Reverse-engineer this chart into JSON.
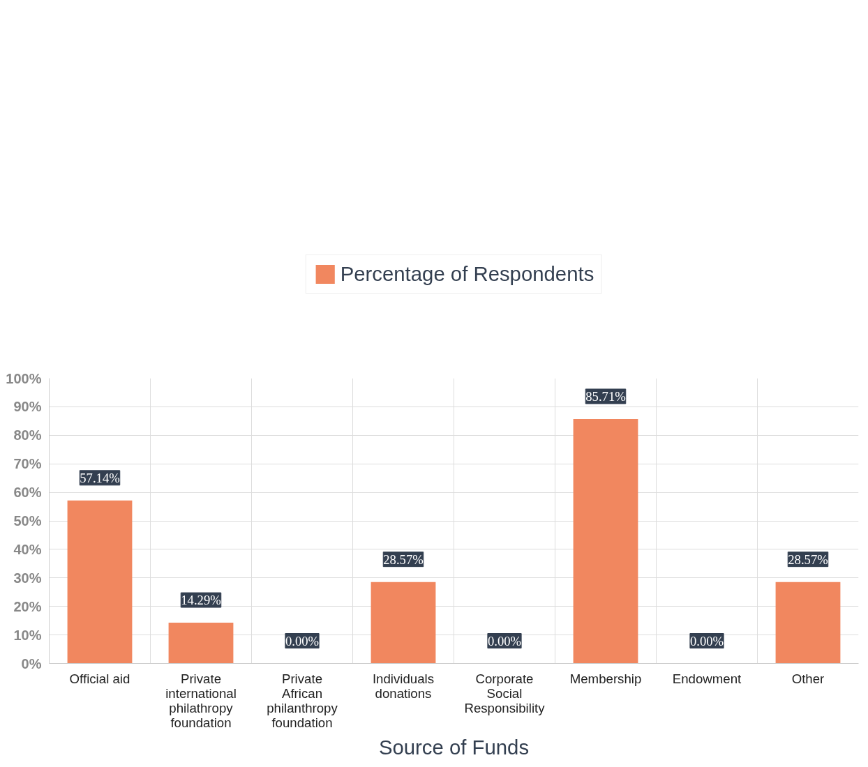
{
  "chart_data": {
    "type": "bar",
    "xlabel": "Source of Funds",
    "categories": [
      "Official aid",
      "Private international philathropy foundation",
      "Private African philanthropy foundation",
      "Individuals donations",
      "Corporate Social Responsibility",
      "Membership",
      "Endowment",
      "Other"
    ],
    "series": [
      {
        "name": "Percentage of Respondents",
        "color": "#f1875f",
        "values": [
          57.14,
          14.29,
          0,
          28.57,
          0,
          85.71,
          0,
          28.57
        ],
        "value_labels": [
          "57.14%",
          "14.29%",
          "0.00%",
          "28.57%",
          "0.00%",
          "85.71%",
          "0.00%",
          "28.57%"
        ]
      }
    ],
    "ylim": [
      0,
      100
    ],
    "yticks": [
      {
        "value": 0,
        "label": "0%"
      },
      {
        "value": 10,
        "label": "10%"
      },
      {
        "value": 20,
        "label": "20%"
      },
      {
        "value": 30,
        "label": "30%"
      },
      {
        "value": 40,
        "label": "40%"
      },
      {
        "value": 50,
        "label": "50%"
      },
      {
        "value": 60,
        "label": "60%"
      },
      {
        "value": 70,
        "label": "70%"
      },
      {
        "value": 80,
        "label": "80%"
      },
      {
        "value": 90,
        "label": "90%"
      },
      {
        "value": 100,
        "label": "100%"
      }
    ],
    "grid": true,
    "legend": "top"
  }
}
